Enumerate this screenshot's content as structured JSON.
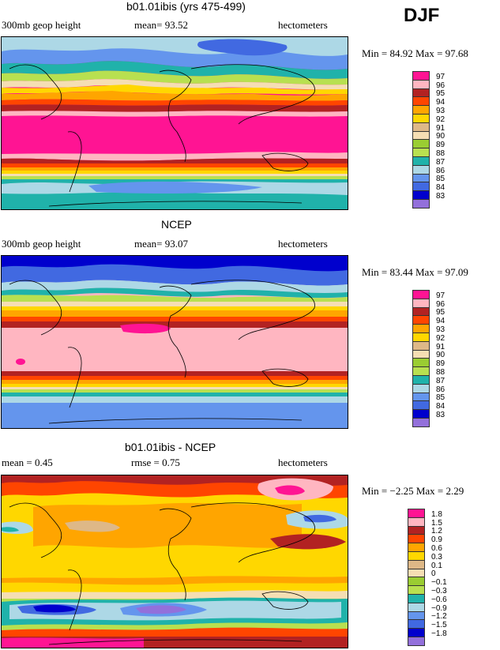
{
  "season": "DJF",
  "panels": [
    {
      "title": "b01.01ibis (yrs 475-499)",
      "left_text": "300mb geop height",
      "mid_text": "mean=  93.52",
      "right_text": "hectometers",
      "minmax": "Min =  84.92 Max =  97.68",
      "legend": [
        "97",
        "96",
        "95",
        "94",
        "93",
        "92",
        "91",
        "90",
        "89",
        "88",
        "87",
        "86",
        "85",
        "84",
        "83"
      ]
    },
    {
      "title": "NCEP",
      "left_text": "300mb geop height",
      "mid_text": "mean=  93.07",
      "right_text": "hectometers",
      "minmax": "Min =  83.44 Max =  97.09",
      "legend": [
        "97",
        "96",
        "95",
        "94",
        "93",
        "92",
        "91",
        "90",
        "89",
        "88",
        "87",
        "86",
        "85",
        "84",
        "83"
      ]
    },
    {
      "title": "b01.01ibis - NCEP",
      "left_text": "mean =   0.45",
      "mid_text": "rmse =   0.75",
      "right_text": "hectometers",
      "minmax": "Min =  −2.25 Max =   2.29",
      "legend": [
        "1.8",
        "1.5",
        "1.2",
        "0.9",
        "0.6",
        "0.3",
        "0.1",
        "0",
        "−0.1",
        "−0.3",
        "−0.6",
        "−0.9",
        "−1.2",
        "−1.5",
        "−1.8"
      ]
    }
  ],
  "colors": {
    "abs": [
      "#ff1493",
      "#ffb6c1",
      "#b22222",
      "#ff4500",
      "#ffa500",
      "#ffd700",
      "#deb887",
      "#f5deb3",
      "#9acd32",
      "#b8e050",
      "#20b2aa",
      "#add8e6",
      "#6495ed",
      "#4169e1",
      "#0000cd",
      "#9370db"
    ],
    "diff": [
      "#ff1493",
      "#ffb6c1",
      "#b22222",
      "#ff4500",
      "#ffa500",
      "#ffd700",
      "#deb887",
      "#f5deb3",
      "#9acd32",
      "#b8e050",
      "#20b2aa",
      "#add8e6",
      "#6495ed",
      "#4169e1",
      "#0000cd",
      "#9370db"
    ]
  }
}
